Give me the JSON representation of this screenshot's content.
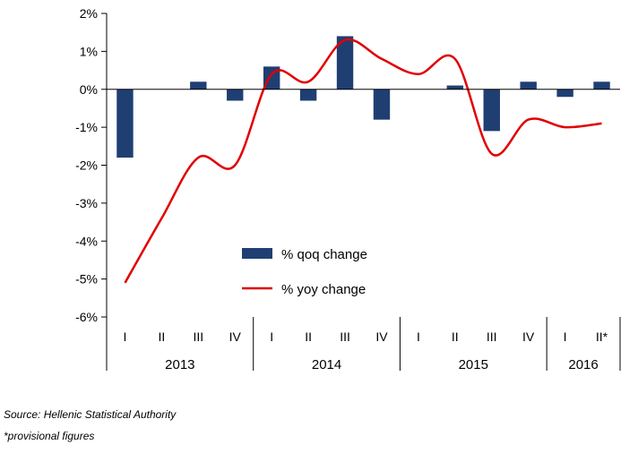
{
  "chart_data": {
    "type": "bar+line",
    "categories": [
      {
        "quarter": "I",
        "year": "2013"
      },
      {
        "quarter": "II",
        "year": "2013"
      },
      {
        "quarter": "III",
        "year": "2013"
      },
      {
        "quarter": "IV",
        "year": "2013"
      },
      {
        "quarter": "I",
        "year": "2014"
      },
      {
        "quarter": "II",
        "year": "2014"
      },
      {
        "quarter": "III",
        "year": "2014"
      },
      {
        "quarter": "IV",
        "year": "2014"
      },
      {
        "quarter": "I",
        "year": "2015"
      },
      {
        "quarter": "II",
        "year": "2015"
      },
      {
        "quarter": "III",
        "year": "2015"
      },
      {
        "quarter": "IV",
        "year": "2015"
      },
      {
        "quarter": "I",
        "year": "2016"
      },
      {
        "quarter": "II*",
        "year": "2016"
      }
    ],
    "years": [
      "2013",
      "2014",
      "2015",
      "2016"
    ],
    "year_spans": [
      4,
      4,
      4,
      2
    ],
    "series": [
      {
        "name": "% qoq change",
        "type": "bar",
        "color": "#1f3f73",
        "values": [
          -1.8,
          0.0,
          0.2,
          -0.3,
          0.6,
          -0.3,
          1.4,
          -0.8,
          0.0,
          0.1,
          -1.1,
          0.2,
          -0.2,
          0.2
        ]
      },
      {
        "name": "% yoy change",
        "type": "line",
        "color": "#e00000",
        "values": [
          -5.1,
          -3.4,
          -1.8,
          -2.0,
          0.4,
          0.2,
          1.3,
          0.8,
          0.4,
          0.8,
          -1.7,
          -0.8,
          -1.0,
          -0.9
        ]
      }
    ],
    "y_ticks": [
      "2%",
      "1%",
      "0%",
      "-1%",
      "-2%",
      "-3%",
      "-4%",
      "-5%",
      "-6%"
    ],
    "ylim": [
      -6,
      2
    ],
    "legend_position": "center"
  },
  "footnotes": {
    "source": "Source: Hellenic Statistical Authority",
    "provisional": "*provisional figures"
  }
}
